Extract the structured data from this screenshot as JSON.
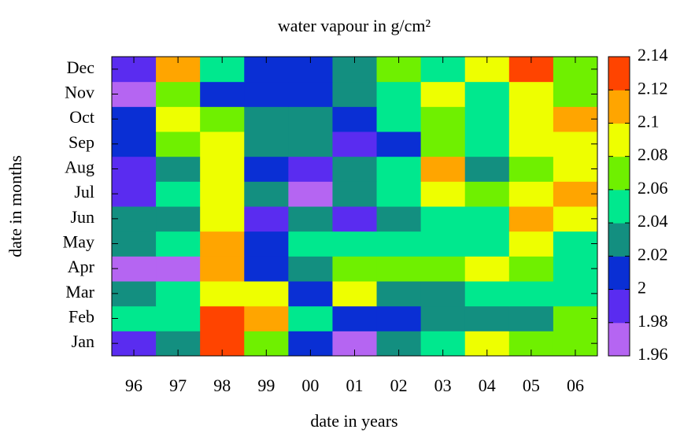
{
  "chart_data": {
    "type": "heatmap",
    "title": "water vapour in g/cm²",
    "x_label": "date in years",
    "y_label": "date in months",
    "x_categories": [
      "96",
      "97",
      "98",
      "99",
      "00",
      "01",
      "02",
      "03",
      "04",
      "05",
      "06"
    ],
    "y_categories": [
      "Jan",
      "Feb",
      "Mar",
      "Apr",
      "May",
      "Jun",
      "Jul",
      "Aug",
      "Sep",
      "Oct",
      "Nov",
      "Dec"
    ],
    "values": [
      [
        1.99,
        2.03,
        2.13,
        2.07,
        2.01,
        1.97,
        2.03,
        2.05,
        2.09,
        2.07,
        2.07
      ],
      [
        2.05,
        2.05,
        2.13,
        2.11,
        2.05,
        2.01,
        2.01,
        2.03,
        2.03,
        2.03,
        2.07
      ],
      [
        2.03,
        2.05,
        2.09,
        2.09,
        2.01,
        2.09,
        2.03,
        2.03,
        2.05,
        2.05,
        2.05
      ],
      [
        1.97,
        1.97,
        2.11,
        2.01,
        2.03,
        2.07,
        2.07,
        2.07,
        2.09,
        2.07,
        2.05
      ],
      [
        2.03,
        2.05,
        2.11,
        2.01,
        2.05,
        2.05,
        2.05,
        2.05,
        2.05,
        2.09,
        2.05
      ],
      [
        2.03,
        2.03,
        2.09,
        1.99,
        2.03,
        1.99,
        2.03,
        2.05,
        2.05,
        2.11,
        2.09
      ],
      [
        1.99,
        2.05,
        2.09,
        2.03,
        1.97,
        2.03,
        2.05,
        2.09,
        2.07,
        2.09,
        2.11
      ],
      [
        1.99,
        2.03,
        2.09,
        2.01,
        1.99,
        2.03,
        2.05,
        2.11,
        2.03,
        2.07,
        2.09
      ],
      [
        2.01,
        2.07,
        2.09,
        2.03,
        2.03,
        1.99,
        2.01,
        2.07,
        2.05,
        2.09,
        2.09
      ],
      [
        2.01,
        2.09,
        2.07,
        2.03,
        2.03,
        2.01,
        2.05,
        2.07,
        2.05,
        2.09,
        2.11
      ],
      [
        1.97,
        2.07,
        2.01,
        2.01,
        2.01,
        2.03,
        2.05,
        2.09,
        2.05,
        2.09,
        2.07
      ],
      [
        1.99,
        2.11,
        2.05,
        2.01,
        2.01,
        2.03,
        2.07,
        2.05,
        2.09,
        2.13,
        2.07
      ]
    ],
    "colorbar": {
      "lim": [
        1.96,
        2.14
      ],
      "ticks": [
        1.96,
        1.98,
        2,
        2.02,
        2.04,
        2.06,
        2.08,
        2.1,
        2.12,
        2.14
      ],
      "colors": [
        "#b565f2",
        "#5a2cf0",
        "#0a2fd4",
        "#138f80",
        "#00e88e",
        "#6ff000",
        "#eeff00",
        "#ffa500",
        "#ff4400"
      ]
    }
  }
}
